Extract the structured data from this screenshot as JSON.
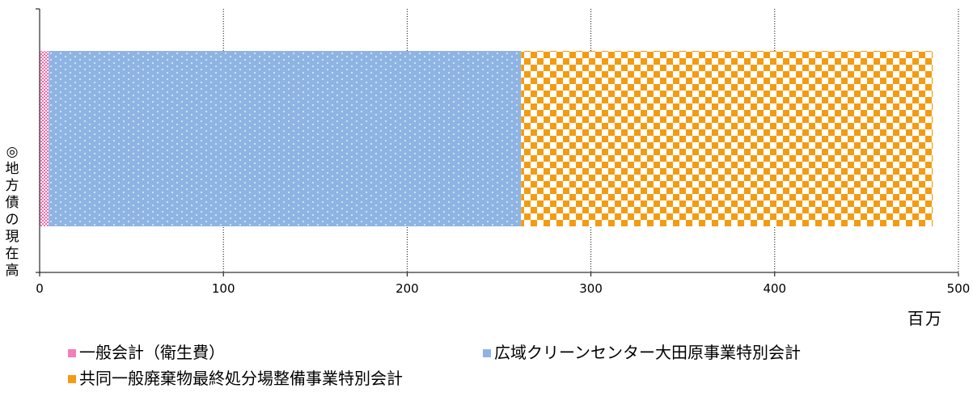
{
  "chart_data": {
    "type": "bar",
    "orientation": "horizontal",
    "stacked": true,
    "categories": [
      "◎地方債の現在高"
    ],
    "series": [
      {
        "name": "一般会計（衛生費）",
        "values": [
          5
        ],
        "color": "#f47fb8",
        "pattern": "checker"
      },
      {
        "name": "広域クリーンセンター大田原事業特別会計",
        "values": [
          257
        ],
        "color": "#8eb4e3",
        "pattern": "dots"
      },
      {
        "name": "共同一般廃棄物最終処分場整備事業特別会計",
        "values": [
          224
        ],
        "color": "#f39c12",
        "pattern": "checker"
      }
    ],
    "xlim": [
      0,
      500
    ],
    "xticks": [
      "0",
      "100",
      "200",
      "300",
      "400",
      "500"
    ],
    "xunit": "百万",
    "ylabel": "◎地方債の現在高",
    "grid": true,
    "legend_position": "bottom"
  }
}
